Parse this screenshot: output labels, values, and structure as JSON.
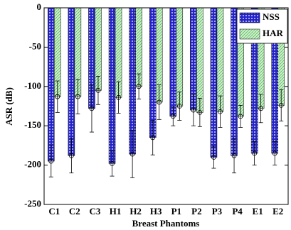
{
  "chart_data": {
    "type": "bar",
    "x_label": "Breast Phantoms",
    "y_label": "ASR (dB)",
    "categories": [
      "C1",
      "C2",
      "C3",
      "H1",
      "H2",
      "H3",
      "P1",
      "P2",
      "P3",
      "P4",
      "E1",
      "E2"
    ],
    "series": [
      {
        "name": "NSS",
        "color": "#2424c8",
        "values": [
          -195,
          -188,
          -128,
          -198,
          -186,
          -165,
          -138,
          -130,
          -190,
          -188,
          -185,
          -185
        ],
        "errors": [
          20,
          22,
          30,
          16,
          30,
          22,
          12,
          20,
          14,
          22,
          15,
          15
        ]
      },
      {
        "name": "HAR",
        "color": "#c8f0c8",
        "values": [
          -113,
          -113,
          -105,
          -114,
          -100,
          -120,
          -125,
          -133,
          -132,
          -138,
          -128,
          -124
        ],
        "errors": [
          20,
          22,
          18,
          20,
          16,
          22,
          18,
          18,
          20,
          14,
          18,
          20
        ]
      }
    ],
    "ylim": [
      -250,
      0
    ],
    "yticks": [
      0,
      -50,
      -100,
      -150,
      -200,
      -250
    ],
    "legend": "upper right"
  }
}
